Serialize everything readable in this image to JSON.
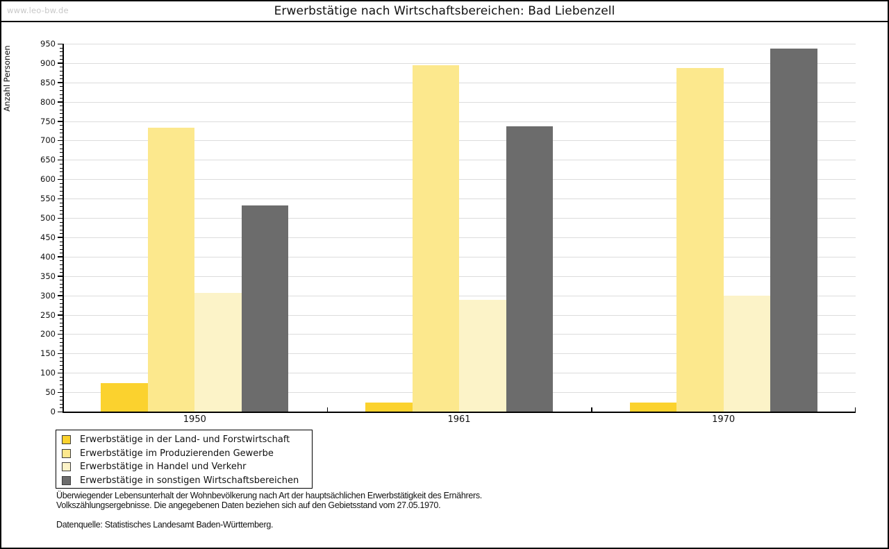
{
  "watermark": "www.leo-bw.de",
  "title": "Erwerbstätige nach Wirtschaftsbereichen: Bad Liebenzell",
  "chart_data": {
    "type": "bar",
    "title": "Erwerbstätige nach Wirtschaftsbereichen: Bad Liebenzell",
    "xlabel": "",
    "ylabel": "Anzahl Personen",
    "categories": [
      "1950",
      "1961",
      "1970"
    ],
    "series": [
      {
        "name": "Erwerbstätige in der Land- und Forstwirtschaft",
        "color": "#fbd22e",
        "values": [
          73,
          24,
          24
        ]
      },
      {
        "name": "Erwerbstätige im Produzierenden Gewerbe",
        "color": "#fce88d",
        "values": [
          733,
          895,
          888
        ]
      },
      {
        "name": "Erwerbstätige in Handel und Verkehr",
        "color": "#fcf3c8",
        "values": [
          306,
          289,
          300
        ]
      },
      {
        "name": "Erwerbstätige in sonstigen Wirtschaftsbereichen",
        "color": "#6c6c6c",
        "values": [
          533,
          736,
          938
        ]
      }
    ],
    "ylim": [
      0,
      950
    ],
    "ytick_step": 50,
    "yminor_step": 10,
    "grid": "horizontal-major",
    "gridline_color": "#dcdcdc",
    "legend_position": "bottom-left"
  },
  "footnotes": {
    "line1": "Überwiegender Lebensunterhalt der Wohnbevölkerung nach Art der hauptsächlichen Erwerbstätigkeit des Ernährers.",
    "line2": "Volkszählungsergebnisse. Die angegebenen Daten beziehen sich auf den Gebietsstand vom 27.05.1970.",
    "source": "Datenquelle: Statistisches Landesamt Baden-Württemberg."
  }
}
